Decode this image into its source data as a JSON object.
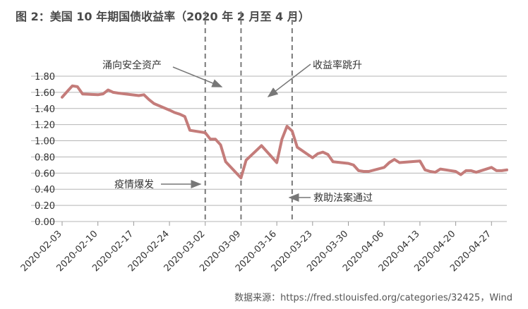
{
  "title": "图 2：美国 10 年期国债收益率（2020 年 2 月至 4 月）",
  "source": "数据来源：https://fred.stlouisfed.org/categories/32425，Wind",
  "colors": {
    "line": "#c47c7a",
    "grid": "#b5b5b5",
    "vline": "#7a7a7a",
    "text": "#333333"
  },
  "chart_data": {
    "type": "line",
    "title": "图 2：美国 10 年期国债收益率（2020 年 2 月至 4 月）",
    "xlabel": "",
    "ylabel": "",
    "ylim": [
      0,
      1.8
    ],
    "y_ticks": [
      "0.00",
      "0.20",
      "0.40",
      "0.60",
      "0.80",
      "1.00",
      "1.20",
      "1.40",
      "1.60",
      "1.80"
    ],
    "x_ticks": [
      "2020-02-03",
      "2020-02-10",
      "2020-02-17",
      "2020-02-24",
      "2020-03-02",
      "2020-03-09",
      "2020-03-16",
      "2020-03-23",
      "2020-03-30",
      "2020-04-06",
      "2020-04-13",
      "2020-04-20",
      "2020-04-27"
    ],
    "grid": true,
    "legend": "none",
    "series": [
      {
        "x": [
          "2020-02-03",
          "2020-02-04",
          "2020-02-05",
          "2020-02-06",
          "2020-02-07",
          "2020-02-10",
          "2020-02-11",
          "2020-02-12",
          "2020-02-13",
          "2020-02-14",
          "2020-02-18",
          "2020-02-19",
          "2020-02-20",
          "2020-02-21",
          "2020-02-24",
          "2020-02-25",
          "2020-02-26",
          "2020-02-27",
          "2020-02-28",
          "2020-03-02",
          "2020-03-03",
          "2020-03-04",
          "2020-03-05",
          "2020-03-06",
          "2020-03-09",
          "2020-03-10",
          "2020-03-11",
          "2020-03-12",
          "2020-03-13",
          "2020-03-16",
          "2020-03-17",
          "2020-03-18",
          "2020-03-19",
          "2020-03-20",
          "2020-03-23",
          "2020-03-24",
          "2020-03-25",
          "2020-03-26",
          "2020-03-27",
          "2020-03-30",
          "2020-03-31",
          "2020-04-01",
          "2020-04-02",
          "2020-04-03",
          "2020-04-06",
          "2020-04-07",
          "2020-04-08",
          "2020-04-09",
          "2020-04-13",
          "2020-04-14",
          "2020-04-15",
          "2020-04-16",
          "2020-04-17",
          "2020-04-20",
          "2020-04-21",
          "2020-04-22",
          "2020-04-23",
          "2020-04-24",
          "2020-04-27",
          "2020-04-28",
          "2020-04-29",
          "2020-04-30"
        ],
        "values": [
          1.54,
          1.61,
          1.68,
          1.67,
          1.58,
          1.57,
          1.58,
          1.63,
          1.6,
          1.59,
          1.56,
          1.57,
          1.51,
          1.46,
          1.38,
          1.35,
          1.33,
          1.3,
          1.13,
          1.1,
          1.02,
          1.02,
          0.95,
          0.74,
          0.54,
          0.76,
          0.82,
          0.88,
          0.94,
          0.73,
          1.02,
          1.18,
          1.12,
          0.92,
          0.79,
          0.84,
          0.86,
          0.83,
          0.74,
          0.72,
          0.7,
          0.63,
          0.62,
          0.62,
          0.67,
          0.73,
          0.77,
          0.73,
          0.75,
          0.64,
          0.62,
          0.61,
          0.65,
          0.62,
          0.58,
          0.63,
          0.63,
          0.61,
          0.67,
          0.63,
          0.63,
          0.64
        ]
      }
    ],
    "annotations": [
      {
        "label": "涌向安全资产",
        "x": ""
      },
      {
        "label": "收益率跳升",
        "x": ""
      },
      {
        "label": "疫情爆发",
        "x": "2020-03-02"
      },
      {
        "label": "救助法案通过",
        "x": "2020-03-19"
      }
    ],
    "markers": [
      "2020-03-02",
      "2020-03-09",
      "2020-03-19"
    ]
  }
}
